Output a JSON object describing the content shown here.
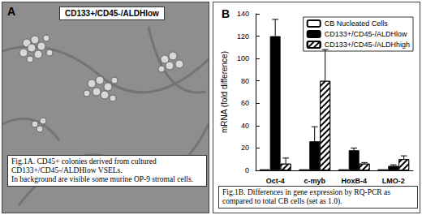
{
  "panel_a": {
    "label": "A",
    "title": "CD133+/CD45-/ALDHlow",
    "caption": [
      "Fig.1A. CD45+ colonies derived from cultured CD133+/CD45-/ALDHlow VSELs.",
      "In background are visible some murine OP-9 stromal cells."
    ]
  },
  "chart_data": {
    "type": "bar",
    "panel_label": "B",
    "caption": "Fig.1B. Differences in gene expression by RQ-PCR as compared to total CB cells (set as 1.0).",
    "ylabel": "mRNA (fold difference)",
    "categories": [
      "Oct-4",
      "c-myb",
      "HoxB-4",
      "LMO-2"
    ],
    "series": [
      {
        "name": "CB Nucleated Cells",
        "color": "#ffffff",
        "values": [
          1,
          1,
          1,
          1
        ]
      },
      {
        "name": "CD133+/CD45-/ALDHlow",
        "color": "#000000",
        "values": [
          120,
          26,
          18,
          4
        ],
        "errors": [
          15,
          13,
          2,
          1
        ]
      },
      {
        "name": "CD133+/CD45-/ALDHhigh",
        "color": "#ffffff",
        "marker": "hatched",
        "values": [
          6,
          80,
          6,
          10
        ],
        "errors": [
          5,
          28,
          1,
          3
        ]
      }
    ],
    "ylim": [
      0,
      140
    ],
    "yticks": [
      0,
      20,
      40,
      60,
      80,
      100,
      120,
      140
    ],
    "grid": false,
    "legend": "upper right"
  }
}
